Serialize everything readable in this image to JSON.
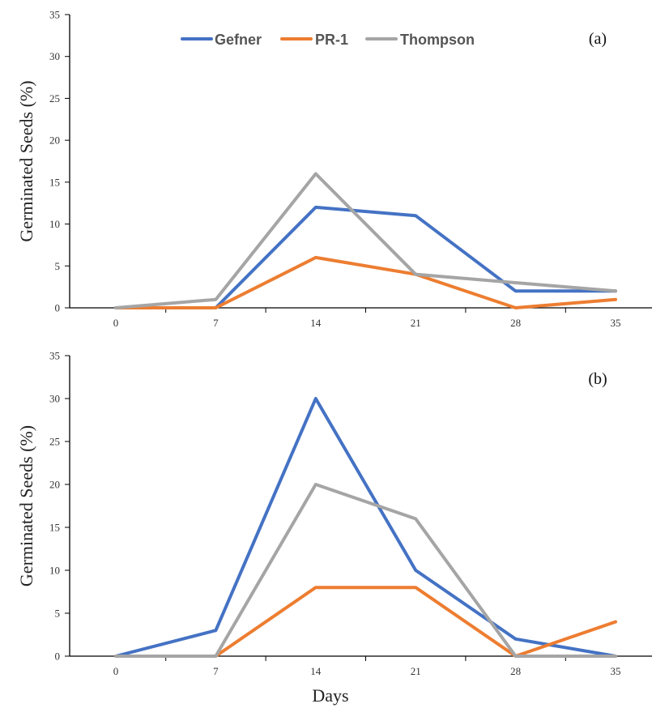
{
  "colors": {
    "Gefner": "#4472C4",
    "PR-1": "#ED7D31",
    "Thompson": "#A5A5A5"
  },
  "legend": [
    "Gefner",
    "PR-1",
    "Thompson"
  ],
  "xlabel": "Days",
  "chart_data": [
    {
      "type": "line",
      "panel_label": "(a)",
      "x": [
        0,
        7,
        14,
        21,
        28,
        35
      ],
      "xticks": [
        "0",
        "7",
        "14",
        "21",
        "28",
        "35"
      ],
      "ylabel": "Germinated Seeds (%)",
      "ylim": [
        0,
        35
      ],
      "yticks": [
        "0",
        "5",
        "10",
        "15",
        "20",
        "25",
        "30",
        "35"
      ],
      "legend_position": "top-center",
      "grid": false,
      "series": [
        {
          "name": "Gefner",
          "values": [
            0,
            0,
            12,
            11,
            2,
            2
          ]
        },
        {
          "name": "PR-1",
          "values": [
            0,
            0,
            6,
            4,
            0,
            1
          ]
        },
        {
          "name": "Thompson",
          "values": [
            0,
            1,
            16,
            4,
            3,
            2
          ]
        }
      ]
    },
    {
      "type": "line",
      "panel_label": "(b)",
      "x": [
        0,
        7,
        14,
        21,
        28,
        35
      ],
      "xticks": [
        "0",
        "7",
        "14",
        "21",
        "28",
        "35"
      ],
      "xlabel": "Days",
      "ylabel": "Germinated Seeds (%)",
      "ylim": [
        0,
        35
      ],
      "yticks": [
        "0",
        "5",
        "10",
        "15",
        "20",
        "25",
        "30",
        "35"
      ],
      "grid": false,
      "series": [
        {
          "name": "Gefner",
          "values": [
            0,
            3,
            30,
            10,
            2,
            0
          ]
        },
        {
          "name": "PR-1",
          "values": [
            0,
            0,
            8,
            8,
            0,
            4
          ]
        },
        {
          "name": "Thompson",
          "values": [
            0,
            0,
            20,
            16,
            0,
            0
          ]
        }
      ]
    }
  ]
}
